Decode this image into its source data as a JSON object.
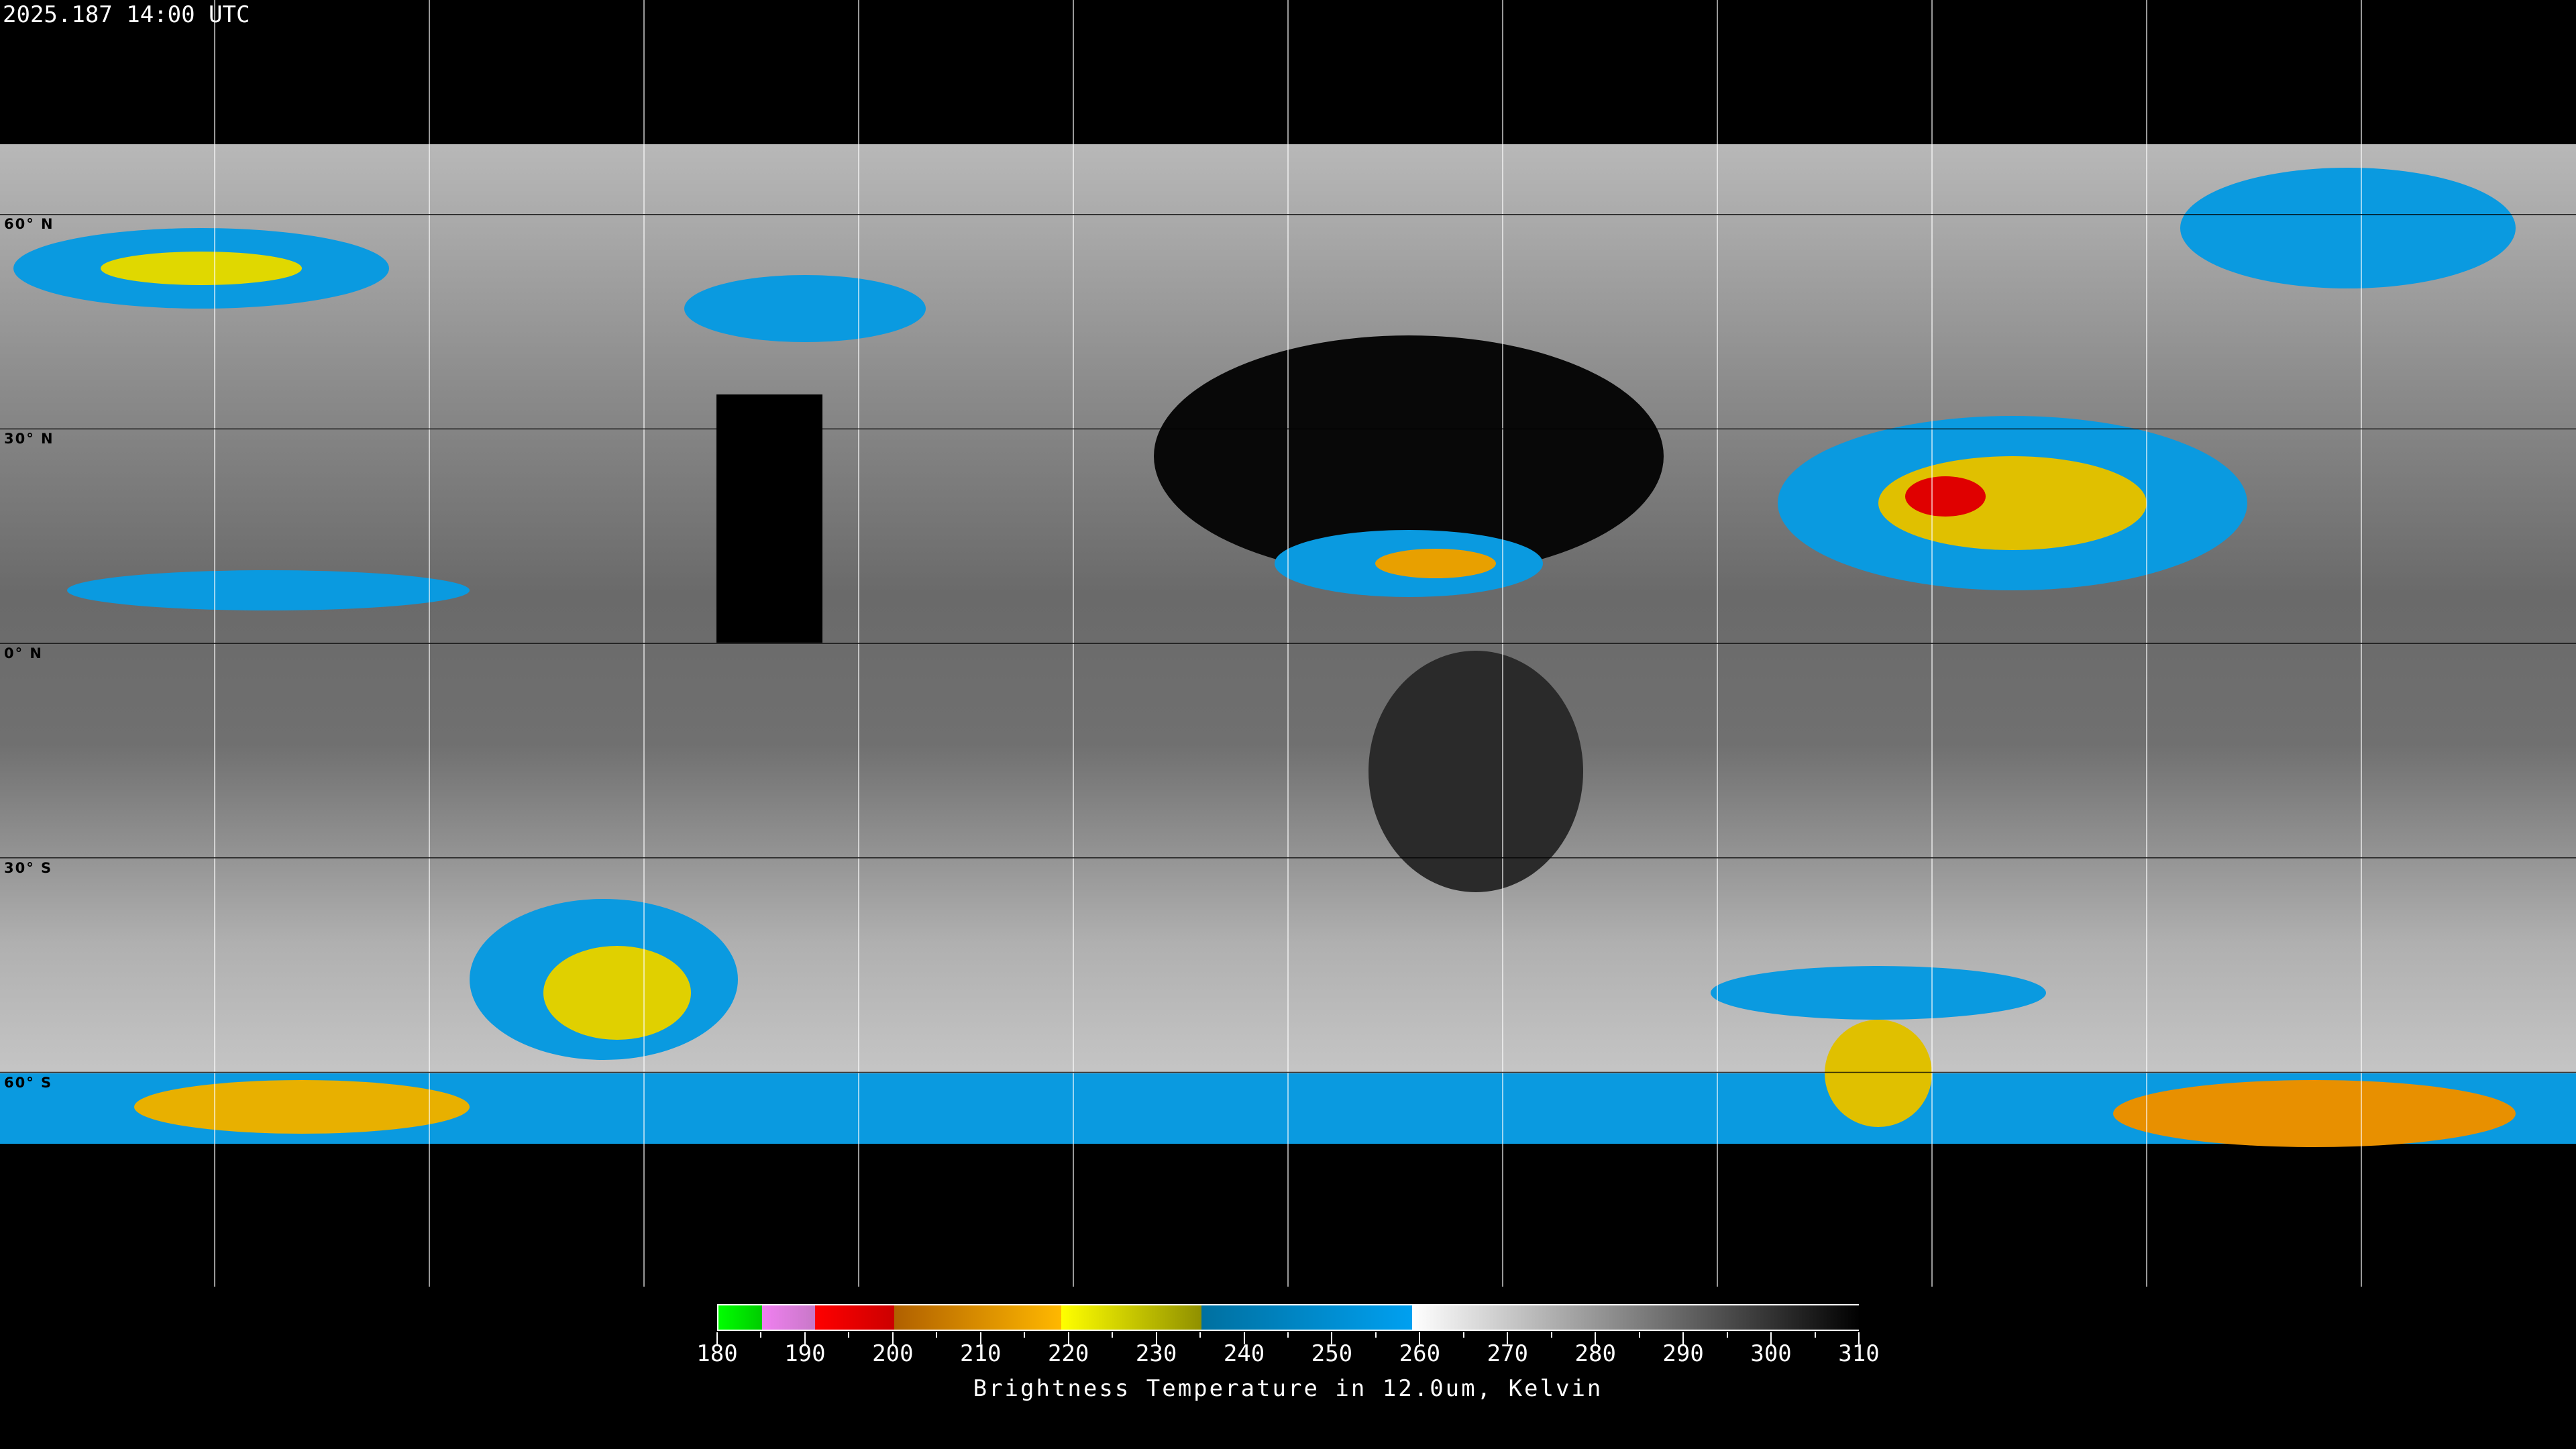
{
  "header": {
    "timestamp": "2025.187 14:00 UTC"
  },
  "map": {
    "projection": "equirectangular",
    "graticule_spacing_deg": 30,
    "lat_labels": [
      "60° N",
      "30° N",
      "0° N",
      "30° S",
      "60° S"
    ],
    "grid_color": "#ffffff",
    "coastline_color": "#ffffff"
  },
  "colorbar": {
    "range": [
      180,
      310
    ],
    "ticks": [
      "180",
      "190",
      "200",
      "210",
      "220",
      "230",
      "240",
      "250",
      "260",
      "270",
      "280",
      "290",
      "300",
      "310"
    ],
    "segments": [
      {
        "from": 180,
        "to": 185,
        "c1": "#00ff00",
        "c2": "#00cc00"
      },
      {
        "from": 185,
        "to": 191,
        "c1": "#f080f0",
        "c2": "#c878c8"
      },
      {
        "from": 191,
        "to": 200,
        "c1": "#ff0000",
        "c2": "#cc0000"
      },
      {
        "from": 200,
        "to": 219,
        "c1": "#b06000",
        "c2": "#ffb800"
      },
      {
        "from": 219,
        "to": 235,
        "c1": "#ffff00",
        "c2": "#909000"
      },
      {
        "from": 235,
        "to": 259,
        "c1": "#0070a0",
        "c2": "#00a0f0"
      },
      {
        "from": 259,
        "to": 310,
        "c1": "#ffffff",
        "c2": "#000000"
      }
    ],
    "title": "Brightness Temperature in 12.0um, Kelvin"
  }
}
